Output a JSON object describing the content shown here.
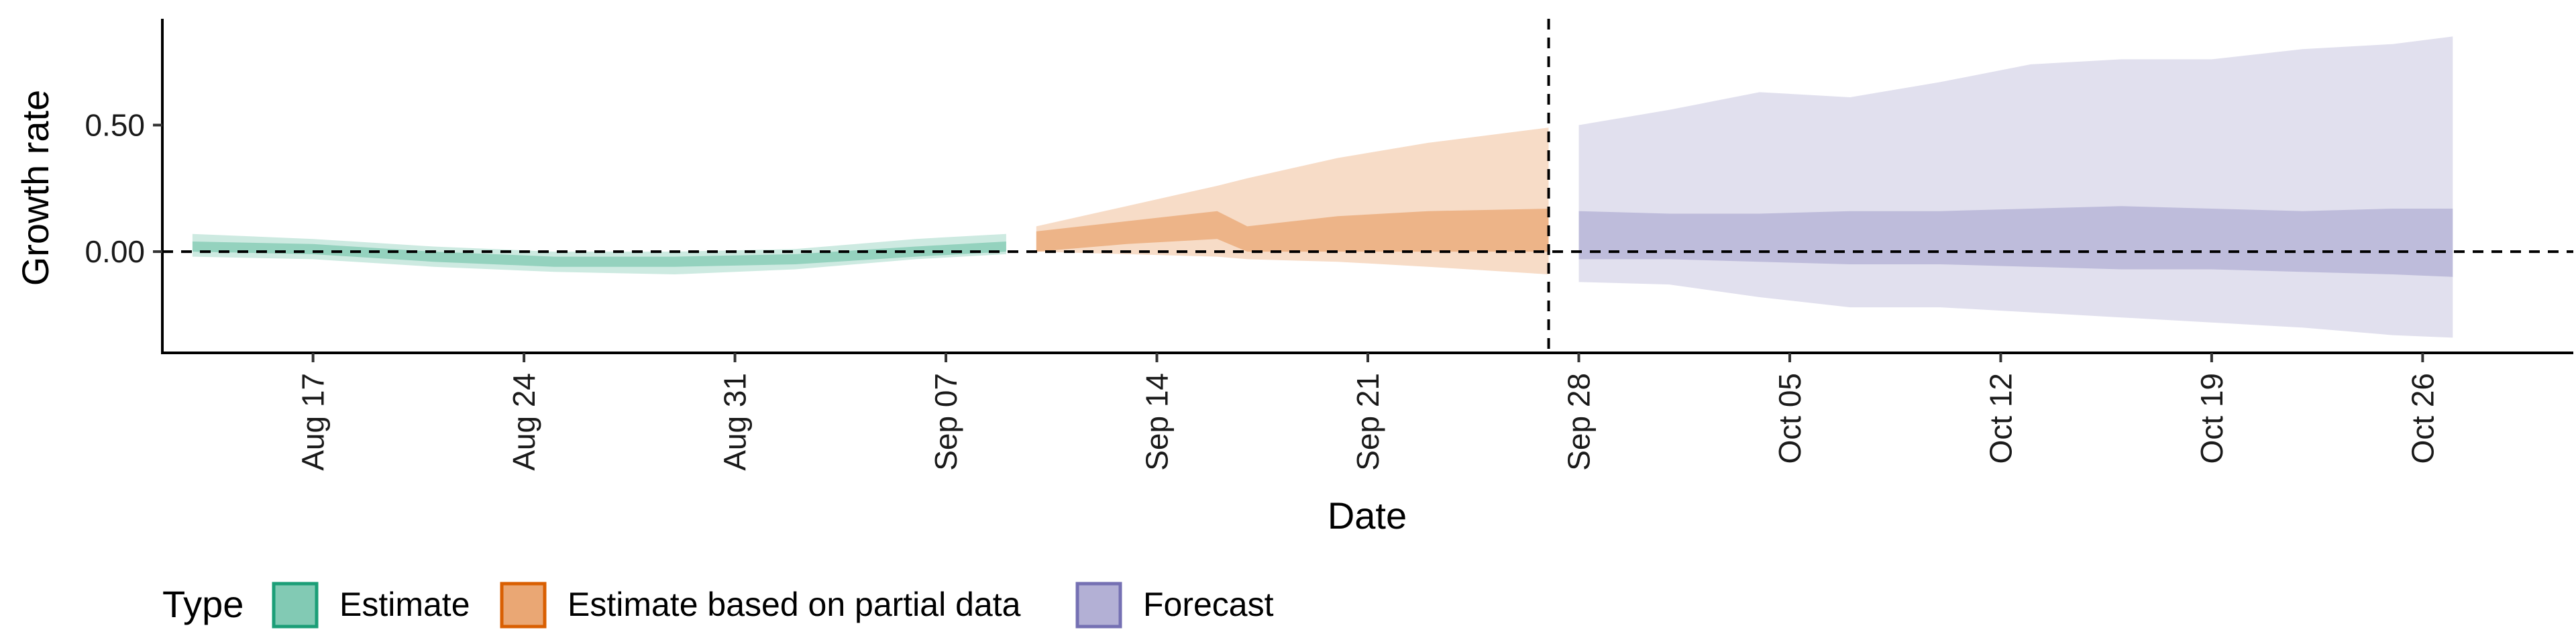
{
  "chart_data": {
    "type": "area",
    "xlabel": "Date",
    "ylabel": "Growth rate",
    "x_range": [
      "2020-08-12",
      "2020-10-31"
    ],
    "ylim": [
      -0.4,
      0.92
    ],
    "y_ticks": [
      {
        "value": 0.5,
        "label": "0.50"
      },
      {
        "value": 0.0,
        "label": "0.00"
      }
    ],
    "x_ticks": [
      {
        "date": "2020-08-17",
        "label": "Aug 17"
      },
      {
        "date": "2020-08-24",
        "label": "Aug 24"
      },
      {
        "date": "2020-08-31",
        "label": "Aug 31"
      },
      {
        "date": "2020-09-07",
        "label": "Sep 07"
      },
      {
        "date": "2020-09-14",
        "label": "Sep 14"
      },
      {
        "date": "2020-09-21",
        "label": "Sep 21"
      },
      {
        "date": "2020-09-28",
        "label": "Sep 28"
      },
      {
        "date": "2020-10-05",
        "label": "Oct 05"
      },
      {
        "date": "2020-10-12",
        "label": "Oct 12"
      },
      {
        "date": "2020-10-19",
        "label": "Oct 19"
      },
      {
        "date": "2020-10-26",
        "label": "Oct 26"
      }
    ],
    "reference_lines": {
      "horizontal": 0.0,
      "vertical_date": "2020-09-27"
    },
    "grid": false,
    "legend": {
      "position": "bottom-left",
      "title": "Type",
      "entries": [
        {
          "label": "Estimate",
          "fill": "#1b9e77"
        },
        {
          "label": "Estimate based on partial data",
          "fill": "#d95f02"
        },
        {
          "label": "Forecast",
          "fill": "#7570b3"
        }
      ]
    },
    "series": [
      {
        "name": "Estimate",
        "color": "#1b9e77",
        "dates": [
          "2020-08-13",
          "2020-08-17",
          "2020-08-21",
          "2020-08-25",
          "2020-08-29",
          "2020-09-02",
          "2020-09-06",
          "2020-09-09"
        ],
        "lower90": [
          -0.02,
          -0.03,
          -0.06,
          -0.08,
          -0.09,
          -0.07,
          -0.03,
          -0.01
        ],
        "lower50": [
          0.0,
          -0.01,
          -0.04,
          -0.06,
          -0.06,
          -0.05,
          -0.02,
          0.0
        ],
        "upper50": [
          0.04,
          0.03,
          0.0,
          -0.02,
          -0.02,
          -0.01,
          0.02,
          0.04
        ],
        "upper90": [
          0.07,
          0.05,
          0.02,
          0.0,
          0.0,
          0.01,
          0.05,
          0.07
        ]
      },
      {
        "name": "Estimate based on partial data",
        "color": "#d95f02",
        "dates": [
          "2020-09-10",
          "2020-09-13",
          "2020-09-16",
          "2020-09-17",
          "2020-09-20",
          "2020-09-23",
          "2020-09-27"
        ],
        "lower90": [
          0.0,
          -0.01,
          -0.02,
          -0.03,
          -0.04,
          -0.06,
          -0.09
        ],
        "lower50": [
          0.0,
          0.03,
          0.05,
          0.0,
          0.0,
          0.0,
          0.0
        ],
        "upper50": [
          0.08,
          0.12,
          0.16,
          0.1,
          0.14,
          0.16,
          0.17
        ],
        "upper90": [
          0.1,
          0.18,
          0.26,
          0.29,
          0.37,
          0.43,
          0.49
        ]
      },
      {
        "name": "Forecast",
        "color": "#7570b3",
        "dates": [
          "2020-09-28",
          "2020-10-01",
          "2020-10-04",
          "2020-10-07",
          "2020-10-10",
          "2020-10-13",
          "2020-10-16",
          "2020-10-19",
          "2020-10-22",
          "2020-10-25",
          "2020-10-27"
        ],
        "lower90": [
          -0.12,
          -0.13,
          -0.18,
          -0.22,
          -0.22,
          -0.24,
          -0.26,
          -0.28,
          -0.3,
          -0.33,
          -0.34
        ],
        "lower50": [
          -0.03,
          -0.03,
          -0.04,
          -0.05,
          -0.05,
          -0.06,
          -0.07,
          -0.07,
          -0.08,
          -0.09,
          -0.1
        ],
        "upper50": [
          0.16,
          0.15,
          0.15,
          0.16,
          0.16,
          0.17,
          0.18,
          0.17,
          0.16,
          0.17,
          0.17
        ],
        "upper90": [
          0.5,
          0.56,
          0.63,
          0.61,
          0.67,
          0.74,
          0.76,
          0.76,
          0.8,
          0.82,
          0.85
        ]
      }
    ]
  }
}
